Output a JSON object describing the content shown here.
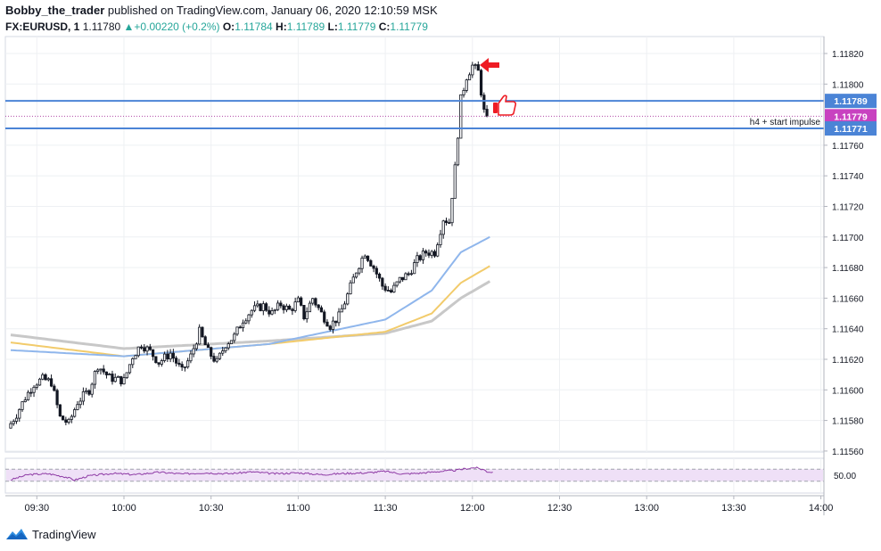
{
  "header": {
    "author": "Bobby_the_trader",
    "published_text": " published on TradingView.com, January 06, 2020 12:10:59 MSK",
    "symbol": "FX:EURUSD, 1",
    "last_price": "1.11780",
    "change_arrow": "▲",
    "change": "+0.00220 (+0.2%)",
    "o_label": "O:",
    "o_value": "1.11784",
    "h_label": "H:",
    "h_value": "1.11789",
    "l_label": "L:",
    "l_value": "1.11779",
    "c_label": "C:",
    "c_value": "1.11779"
  },
  "footer": {
    "brand": "TradingView",
    "logo_icon": "tradingview-logo-icon"
  },
  "colors": {
    "hline": "#4b84d6",
    "dotted_line": "#b04aa8",
    "candle_up": "#ffffff",
    "candle_down": "#131722",
    "ma_fast": "#8fb6ec",
    "ma_mid": "#f2cb6b",
    "ma_slow": "#c8c8c8",
    "rsi_line": "#8e3aa5",
    "rsi_band": "#efe0f7",
    "annotation_red": "#ee1c24",
    "price_badge_blue": "#4b84d6",
    "price_badge_magenta": "#c842c0"
  },
  "chart_data": {
    "type": "candlestick",
    "symbol": "FX:EURUSD",
    "interval": "1",
    "y_ticks": [
      "1.11820",
      "1.11800",
      "1.11760",
      "1.11740",
      "1.11720",
      "1.11700",
      "1.11680",
      "1.11660",
      "1.11640",
      "1.11620",
      "1.11600",
      "1.11580",
      "1.11560"
    ],
    "y_range": [
      1.1155,
      1.1183
    ],
    "x_ticks": [
      "09:30",
      "10:00",
      "10:30",
      "11:00",
      "11:30",
      "12:00",
      "12:30",
      "13:00",
      "13:30",
      "14:00"
    ],
    "x_tick_minutes": [
      570,
      600,
      630,
      660,
      690,
      720,
      750,
      780,
      810,
      840
    ],
    "grid": true,
    "price_labels": [
      {
        "name": "level-top",
        "text": "1.11789",
        "value": 1.11789,
        "style": "line"
      },
      {
        "name": "current",
        "text": "1.11779",
        "value": 1.11779,
        "style": "dotted"
      },
      {
        "name": "level-bottom",
        "text": "1.11771",
        "value": 1.11771,
        "style": "line"
      }
    ],
    "annotation": "h4 + start impulse",
    "close_anchors": [
      [
        561,
        1.11578
      ],
      [
        563,
        1.11584
      ],
      [
        566,
        1.11595
      ],
      [
        569,
        1.11604
      ],
      [
        572,
        1.11607
      ],
      [
        575,
        1.11605
      ],
      [
        578,
        1.11582
      ],
      [
        581,
        1.11578
      ],
      [
        584,
        1.11592
      ],
      [
        588,
        1.116
      ],
      [
        591,
        1.11616
      ],
      [
        595,
        1.11608
      ],
      [
        600,
        1.11606
      ],
      [
        603,
        1.11622
      ],
      [
        606,
        1.1163
      ],
      [
        609,
        1.11625
      ],
      [
        612,
        1.11618
      ],
      [
        616,
        1.11624
      ],
      [
        620,
        1.11612
      ],
      [
        623,
        1.11622
      ],
      [
        626,
        1.11638
      ],
      [
        629,
        1.11625
      ],
      [
        632,
        1.11618
      ],
      [
        635,
        1.1163
      ],
      [
        638,
        1.11635
      ],
      [
        641,
        1.11646
      ],
      [
        644,
        1.11652
      ],
      [
        648,
        1.11655
      ],
      [
        651,
        1.1165
      ],
      [
        654,
        1.11656
      ],
      [
        657,
        1.11652
      ],
      [
        660,
        1.11658
      ],
      [
        662,
        1.11648
      ],
      [
        665,
        1.1166
      ],
      [
        668,
        1.1165
      ],
      [
        671,
        1.11642
      ],
      [
        674,
        1.11648
      ],
      [
        677,
        1.11662
      ],
      [
        680,
        1.11678
      ],
      [
        683,
        1.1169
      ],
      [
        686,
        1.1168
      ],
      [
        689,
        1.11668
      ],
      [
        692,
        1.11664
      ],
      [
        695,
        1.11672
      ],
      [
        698,
        1.11676
      ],
      [
        701,
        1.11685
      ],
      [
        704,
        1.1169
      ],
      [
        707,
        1.1169
      ],
      [
        710,
        1.11712
      ],
      [
        712,
        1.1171
      ],
      [
        714,
        1.11745
      ],
      [
        716,
        1.1179
      ],
      [
        718,
        1.11805
      ],
      [
        720,
        1.11812
      ],
      [
        722,
        1.11808
      ],
      [
        724,
        1.11782
      ],
      [
        725,
        1.11778
      ]
    ],
    "ma_fast": [
      [
        561,
        1.11626
      ],
      [
        600,
        1.11622
      ],
      [
        650,
        1.1163
      ],
      [
        690,
        1.11646
      ],
      [
        706,
        1.11665
      ],
      [
        716,
        1.1169
      ],
      [
        726,
        1.117
      ]
    ],
    "ma_mid": [
      [
        561,
        1.11631
      ],
      [
        600,
        1.11622
      ],
      [
        650,
        1.1163
      ],
      [
        690,
        1.11638
      ],
      [
        706,
        1.1165
      ],
      [
        716,
        1.1167
      ],
      [
        726,
        1.11681
      ]
    ],
    "ma_slow": [
      [
        561,
        1.11636
      ],
      [
        600,
        1.11627
      ],
      [
        650,
        1.11632
      ],
      [
        690,
        1.11637
      ],
      [
        706,
        1.11645
      ],
      [
        716,
        1.1166
      ],
      [
        726,
        1.11671
      ]
    ],
    "rsi": {
      "label": "50.00",
      "band": [
        30,
        70
      ],
      "range": [
        0,
        100
      ],
      "anchors": [
        [
          561,
          35
        ],
        [
          567,
          52
        ],
        [
          574,
          55
        ],
        [
          580,
          44
        ],
        [
          583,
          34
        ],
        [
          588,
          48
        ],
        [
          596,
          56
        ],
        [
          604,
          52
        ],
        [
          612,
          60
        ],
        [
          620,
          54
        ],
        [
          628,
          58
        ],
        [
          636,
          55
        ],
        [
          644,
          61
        ],
        [
          652,
          55
        ],
        [
          660,
          58
        ],
        [
          668,
          52
        ],
        [
          676,
          56
        ],
        [
          684,
          58
        ],
        [
          690,
          63
        ],
        [
          696,
          54
        ],
        [
          702,
          57
        ],
        [
          708,
          62
        ],
        [
          714,
          66
        ],
        [
          718,
          72
        ],
        [
          721,
          75
        ],
        [
          724,
          68
        ],
        [
          725,
          62
        ],
        [
          727,
          60
        ]
      ]
    }
  }
}
